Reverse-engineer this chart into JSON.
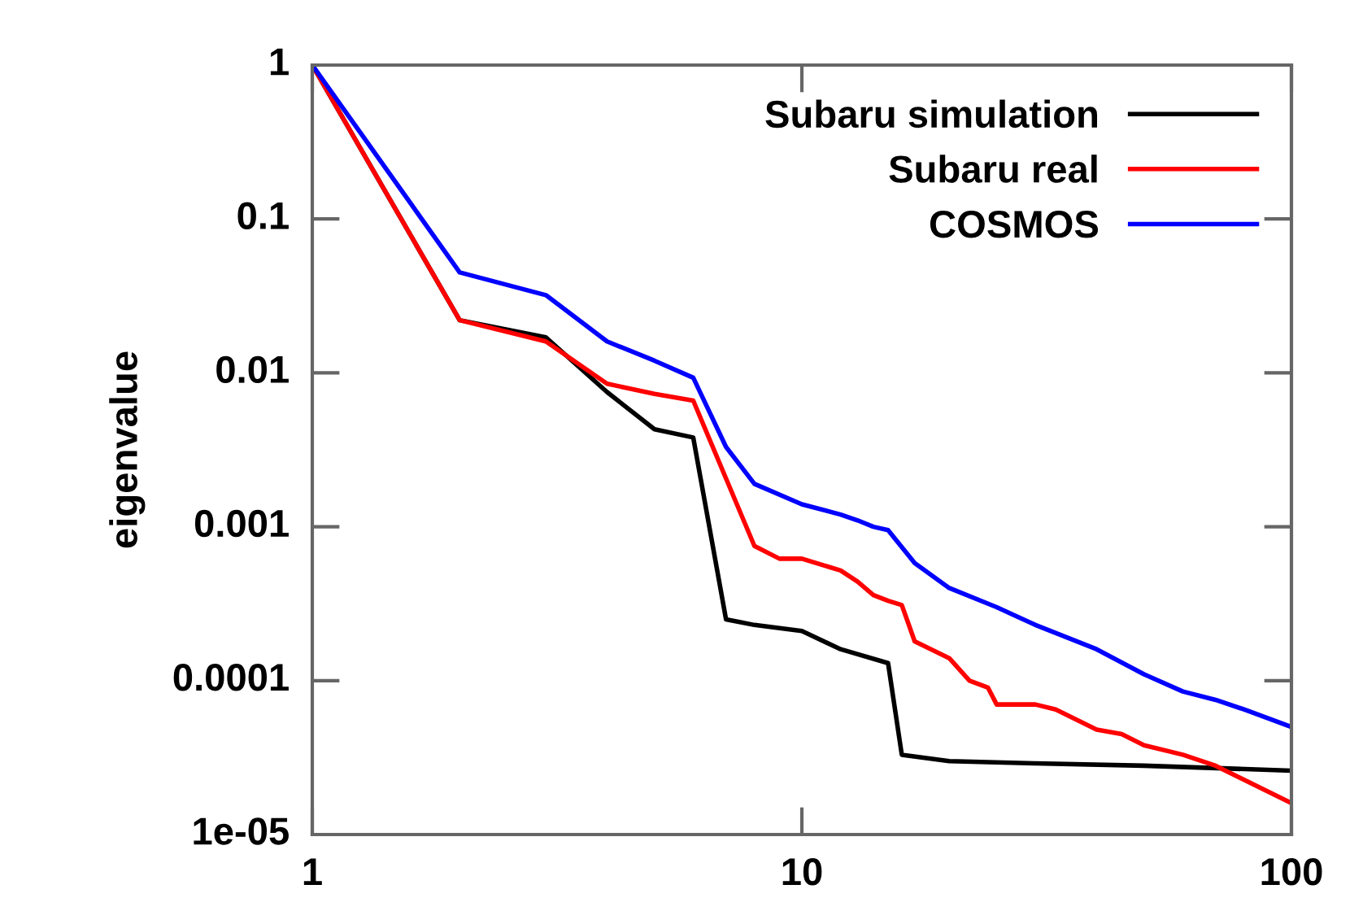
{
  "chart_data": {
    "type": "line",
    "ylabel": "eigenvalue",
    "log": "xy",
    "grid": false,
    "legend": "top right",
    "marker": "none",
    "line_style": "solid",
    "xlim": [
      1,
      100
    ],
    "xticks": [
      1,
      10,
      100
    ],
    "ylim": [
      1e-05,
      1
    ],
    "yticks": [
      {
        "value": 1,
        "label": "1"
      },
      {
        "value": 0.1,
        "label": "0.1"
      },
      {
        "value": 0.01,
        "label": "0.01"
      },
      {
        "value": 0.001,
        "label": "0.001"
      },
      {
        "value": 0.0001,
        "label": "0.0001"
      },
      {
        "value": 1e-05,
        "label": "1e-05"
      }
    ],
    "series": [
      {
        "name": "Subaru simulation",
        "color": "#000000",
        "x": [
          1,
          2,
          3,
          4,
          5,
          6,
          7,
          8,
          10,
          12,
          15,
          16,
          20,
          30,
          50,
          100
        ],
        "values": [
          1,
          0.022,
          0.017,
          0.0075,
          0.0043,
          0.0038,
          0.00025,
          0.00023,
          0.00021,
          0.00016,
          0.00013,
          3.3e-05,
          3e-05,
          2.9e-05,
          2.8e-05,
          2.6e-05
        ]
      },
      {
        "name": "Subaru real",
        "color": "#ff0000",
        "x": [
          1,
          2,
          3,
          4,
          5,
          6,
          8,
          9,
          10,
          12,
          13,
          14,
          15,
          16,
          17,
          20,
          22,
          24,
          25,
          30,
          33,
          40,
          45,
          50,
          60,
          70,
          100
        ],
        "values": [
          1,
          0.022,
          0.016,
          0.0085,
          0.0073,
          0.0066,
          0.00075,
          0.00062,
          0.00062,
          0.00052,
          0.00044,
          0.00036,
          0.00033,
          0.00031,
          0.00018,
          0.00014,
          0.0001,
          9e-05,
          7e-05,
          7e-05,
          6.5e-05,
          4.8e-05,
          4.5e-05,
          3.8e-05,
          3.3e-05,
          2.8e-05,
          1.6e-05
        ]
      },
      {
        "name": "COSMOS",
        "color": "#0000ff",
        "x": [
          1,
          2,
          3,
          4,
          5,
          6,
          7,
          8,
          10,
          12,
          13,
          14,
          15,
          17,
          20,
          25,
          30,
          40,
          50,
          60,
          70,
          80,
          100
        ],
        "values": [
          1,
          0.045,
          0.032,
          0.016,
          0.012,
          0.0093,
          0.0033,
          0.0019,
          0.0014,
          0.0012,
          0.0011,
          0.001,
          0.00095,
          0.00058,
          0.0004,
          0.0003,
          0.00023,
          0.00016,
          0.00011,
          8.5e-05,
          7.5e-05,
          6.5e-05,
          5e-05
        ]
      }
    ]
  }
}
